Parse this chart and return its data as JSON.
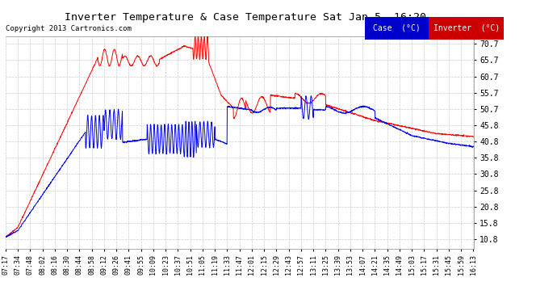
{
  "title": "Inverter Temperature & Case Temperature Sat Jan 5  16:20",
  "copyright": "Copyright 2013 Cartronics.com",
  "legend_case_label": "Case  (°C)",
  "legend_inverter_label": "Inverter  (°C)",
  "case_color": "#0000ff",
  "inverter_color": "#ff0000",
  "legend_case_bg": "#0000cc",
  "legend_inverter_bg": "#cc0000",
  "yticks": [
    10.8,
    15.8,
    20.8,
    25.8,
    30.8,
    35.8,
    40.8,
    45.8,
    50.7,
    55.7,
    60.7,
    65.7,
    70.7
  ],
  "ylim": [
    8.0,
    73.0
  ],
  "background_color": "#ffffff",
  "grid_color": "#cccccc",
  "xtick_labels": [
    "07:17",
    "07:34",
    "07:48",
    "08:02",
    "08:16",
    "08:30",
    "08:44",
    "08:58",
    "09:12",
    "09:26",
    "09:41",
    "09:55",
    "10:09",
    "10:23",
    "10:37",
    "10:51",
    "11:05",
    "11:19",
    "11:33",
    "11:47",
    "12:01",
    "12:15",
    "12:29",
    "12:43",
    "12:57",
    "13:11",
    "13:25",
    "13:39",
    "13:53",
    "14:07",
    "14:21",
    "14:35",
    "14:49",
    "15:03",
    "15:17",
    "15:31",
    "15:45",
    "15:59",
    "16:13"
  ]
}
